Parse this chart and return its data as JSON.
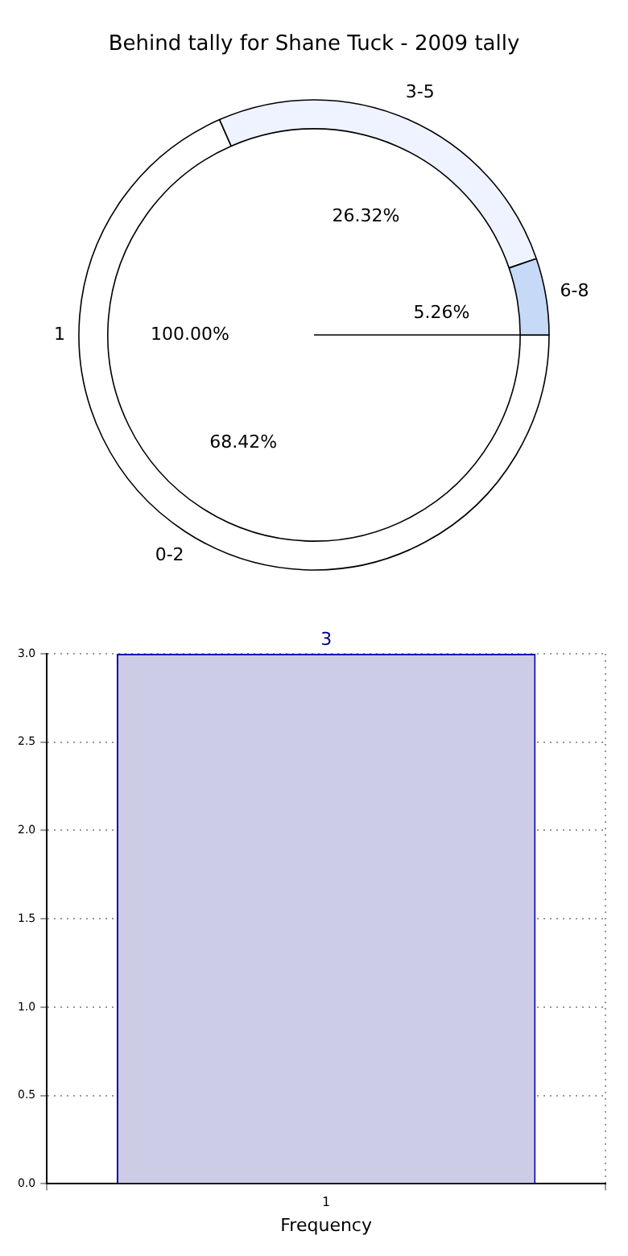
{
  "chart_data": [
    {
      "type": "donut",
      "title": "Behind tally for Shane Tuck - 2009 tally",
      "categories": [
        "0-2",
        "3-5",
        "6-8"
      ],
      "values": [
        68.42,
        26.32,
        5.26
      ],
      "colors": [
        "#ffffff",
        "#eef3ff",
        "#c6d9f7"
      ],
      "value_labels": [
        "68.42%",
        "26.32%",
        "5.26%"
      ]
    },
    {
      "type": "pie",
      "categories": [
        "1"
      ],
      "values": [
        100
      ],
      "colors": [
        "#ffffff"
      ],
      "value_labels": [
        "100.00%"
      ]
    },
    {
      "type": "bar",
      "categories": [
        "1"
      ],
      "values": [
        3
      ],
      "color": "#ccccE6",
      "ylim": [
        0,
        3
      ],
      "yticks": [
        {
          "value": 0,
          "label": "0.0"
        },
        {
          "value": 0.5,
          "label": "0.5"
        },
        {
          "value": 1,
          "label": "1.0"
        },
        {
          "value": 1.5,
          "label": "1.5"
        },
        {
          "value": 2,
          "label": "2.0"
        },
        {
          "value": 2.5,
          "label": "2.5"
        },
        {
          "value": 3,
          "label": "3.0"
        }
      ],
      "xlabel": "Frequency",
      "grid": true,
      "data_labels": true
    }
  ]
}
